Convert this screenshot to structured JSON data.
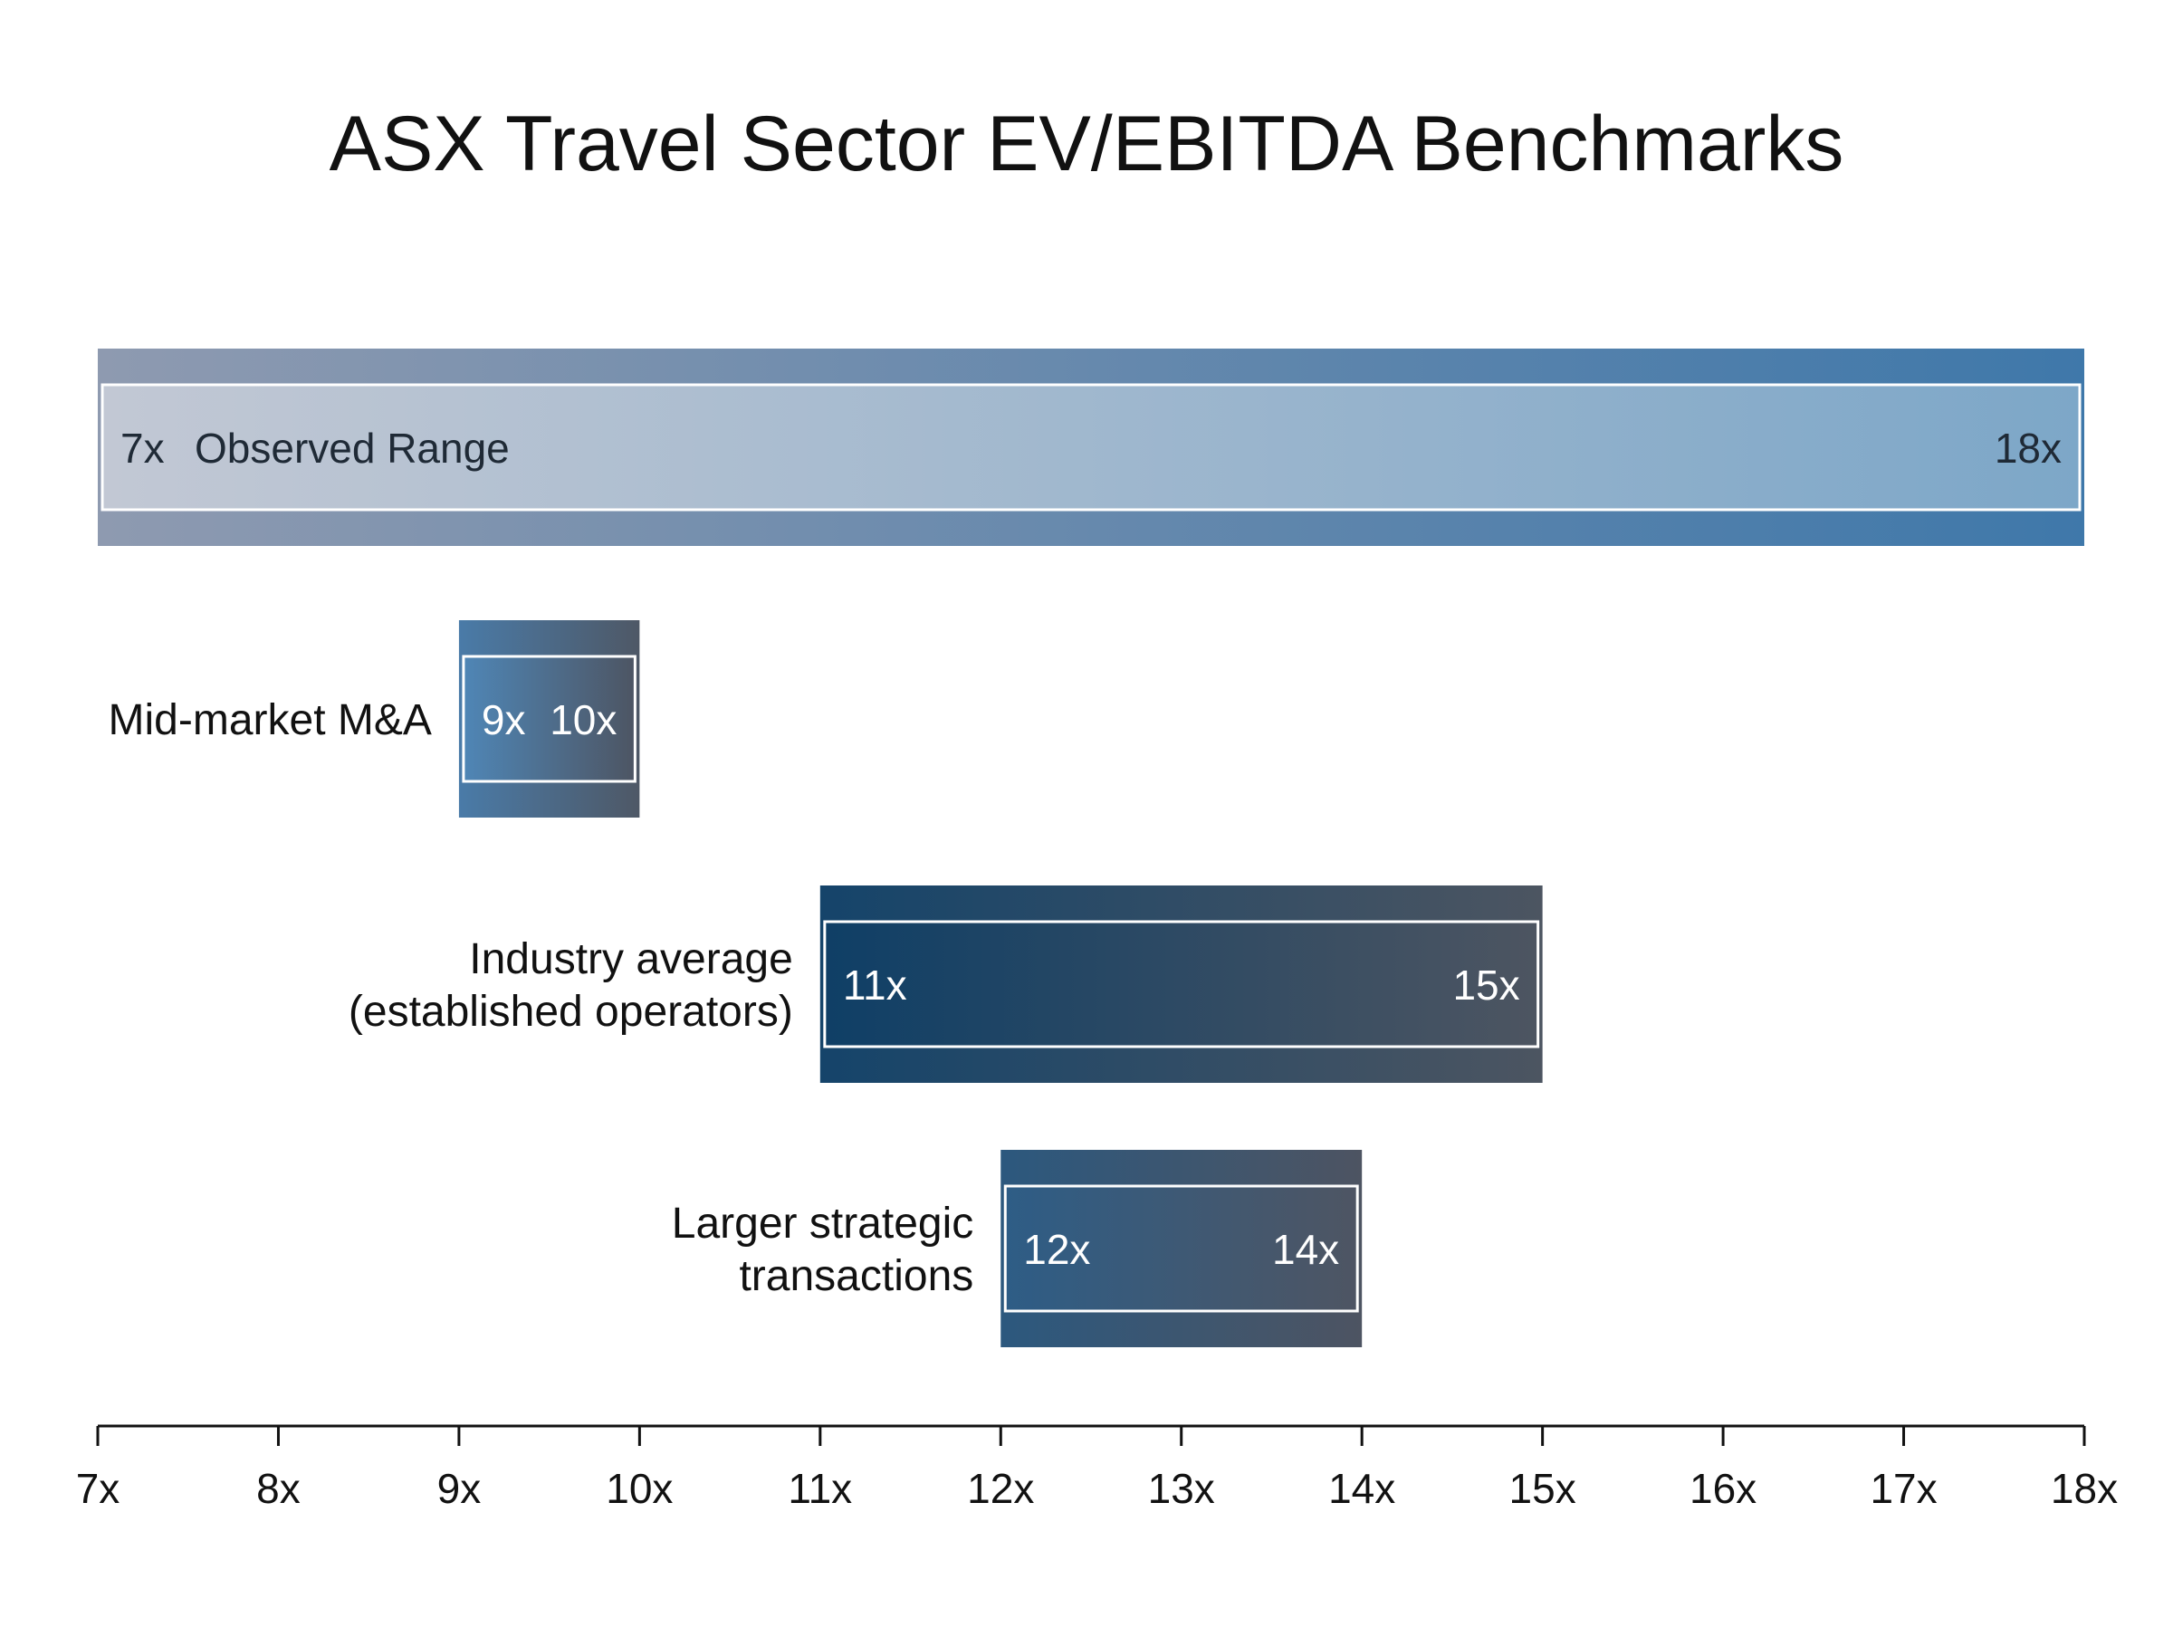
{
  "chart_data": {
    "type": "bar",
    "title": "ASX Travel Sector EV/EBITDA Benchmarks",
    "xlabel": "",
    "ylabel": "",
    "xlim": [
      7,
      18
    ],
    "ticks": [
      7,
      8,
      9,
      10,
      11,
      12,
      13,
      14,
      15,
      16,
      17,
      18
    ],
    "tick_labels": [
      "7x",
      "8x",
      "9x",
      "10x",
      "11x",
      "12x",
      "13x",
      "14x",
      "15x",
      "16x",
      "17x",
      "18x"
    ],
    "grid": false,
    "legend": "none",
    "ranges": [
      {
        "category": "Observed Range",
        "label_position": "inside",
        "category_lines": [
          "Observed Range"
        ],
        "low": 7,
        "high": 18,
        "low_label": "7x",
        "high_label": "18x",
        "colors": {
          "frame_start": "#8e9ab0",
          "frame_end": "#3f78aa",
          "fill_start": "#c2c8d4",
          "fill_end": "#7da7c8",
          "text": "#1f2a36"
        }
      },
      {
        "category": "Mid-market M&A",
        "label_position": "left",
        "category_lines": [
          "Mid-market M&A"
        ],
        "low": 9,
        "high": 10,
        "low_label": "9x",
        "high_label": "10x",
        "colors": {
          "frame_start": "#4a7ba8",
          "frame_end": "#4e5866",
          "fill_start": "#4f86b6",
          "fill_end": "#4d5563",
          "text": "#ffffff"
        }
      },
      {
        "category": "Industry average (established operators)",
        "label_position": "left",
        "category_lines": [
          "Industry average",
          "(established operators)"
        ],
        "low": 11,
        "high": 15,
        "low_label": "11x",
        "high_label": "15x",
        "colors": {
          "frame_start": "#15446a",
          "frame_end": "#4c5561",
          "fill_start": "#0f3f66",
          "fill_end": "#4d5561",
          "text": "#ffffff"
        }
      },
      {
        "category": "Larger strategic transactions",
        "label_position": "left",
        "category_lines": [
          "Larger strategic",
          "transactions"
        ],
        "low": 12,
        "high": 14,
        "low_label": "12x",
        "high_label": "14x",
        "colors": {
          "frame_start": "#2c587e",
          "frame_end": "#4d5462",
          "fill_start": "#2e5d86",
          "fill_end": "#4e5563",
          "text": "#ffffff"
        }
      }
    ]
  }
}
